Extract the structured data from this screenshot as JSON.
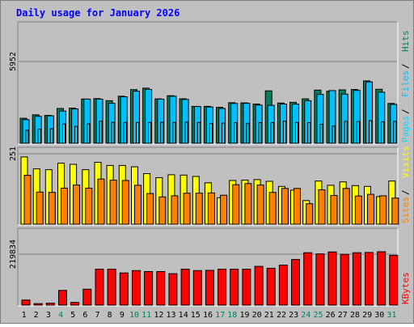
{
  "chart_data": {
    "type": "bar",
    "title": "Daily usage for January 2026",
    "categories": [
      "1",
      "2",
      "3",
      "4",
      "5",
      "6",
      "7",
      "8",
      "9",
      "10",
      "11",
      "12",
      "13",
      "14",
      "15",
      "16",
      "17",
      "18",
      "19",
      "20",
      "21",
      "22",
      "23",
      "24",
      "25",
      "26",
      "27",
      "28",
      "29",
      "30",
      "31"
    ],
    "weekend_days": [
      4,
      10,
      11,
      17,
      18,
      24,
      25,
      31
    ],
    "panels": [
      {
        "key": "hits_files_pages",
        "ytick": "5952",
        "ymax": 5952,
        "right_labels": [
          "Pages",
          "Files",
          "Hits"
        ],
        "series": [
          {
            "name": "Hits",
            "values": [
              1860,
              2110,
              2070,
              2570,
              2590,
              3250,
              3280,
              3130,
              3450,
              3930,
              4030,
              3260,
              3490,
              3270,
              2720,
              2720,
              2650,
              2980,
              2970,
              2890,
              3840,
              2960,
              3010,
              3260,
              3890,
              3810,
              3910,
              3940,
              4560,
              3950,
              2930
            ]
          },
          {
            "name": "Files",
            "values": [
              1760,
              2000,
              2040,
              2380,
              2530,
              3240,
              3240,
              2940,
              3410,
              3810,
              3940,
              3240,
              3450,
              3220,
              2710,
              2670,
              2570,
              2930,
              2940,
              2810,
              2790,
              2890,
              2880,
              3120,
              3580,
              3860,
              3600,
              3870,
              4480,
              3740,
              2860
            ]
          },
          {
            "name": "Pages",
            "values": [
              1000,
              1070,
              1100,
              1450,
              1280,
              1460,
              1660,
              1570,
              1560,
              1560,
              1560,
              1570,
              1560,
              1580,
              1560,
              1490,
              1510,
              1540,
              1500,
              1540,
              1540,
              1660,
              1560,
              1540,
              1430,
              1300,
              1640,
              1620,
              1690,
              1610,
              1640
            ]
          }
        ]
      },
      {
        "key": "visits_sites",
        "ytick": "251",
        "ymax": 251,
        "right_labels": [
          "Sites",
          "Visits"
        ],
        "series": [
          {
            "name": "Visits",
            "values": [
              240,
              198,
              195,
              218,
              214,
              195,
              221,
              210,
              210,
              205,
              181,
              167,
              177,
              176,
              171,
              149,
              96,
              157,
              158,
              160,
              154,
              136,
              123,
              86,
              155,
              140,
              152,
              139,
              136,
              100,
              155
            ]
          },
          {
            "name": "Sites",
            "values": [
              175,
              116,
              115,
              130,
              141,
              130,
              162,
              158,
              157,
              140,
              111,
              99,
              103,
              112,
              112,
              113,
              105,
              142,
              146,
              141,
              115,
              129,
              129,
              75,
              124,
              104,
              129,
              102,
              108,
              103,
              95
            ]
          }
        ]
      },
      {
        "key": "kbytes",
        "ytick": "219834",
        "ymax": 219834,
        "right_labels": [
          "KBytes"
        ],
        "series": [
          {
            "name": "KBytes",
            "values": [
              25000,
              10000,
              12000,
              66000,
              15000,
              71000,
              156000,
              156000,
              140000,
              150000,
              146000,
              146000,
              137000,
              156000,
              150000,
              151000,
              156000,
              156000,
              156000,
              168000,
              160000,
              173000,
              197000,
              226000,
              221000,
              229000,
              219000,
              226000,
              227000,
              230000,
              215000
            ]
          }
        ]
      }
    ],
    "colors": {
      "Hits": "#00805c",
      "Files": "#00c0ff",
      "Pages": "#00e0ff",
      "Visits": "#ffff00",
      "Sites": "#ff8000",
      "KBytes": "#ff0000",
      "title": "#0000ff",
      "weekend": "#00805c",
      "weekday": "#000000",
      "label_sep": "#000000"
    }
  }
}
